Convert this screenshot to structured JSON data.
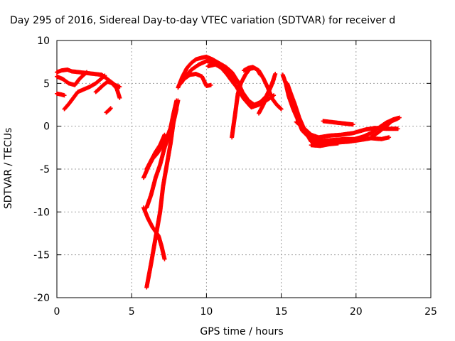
{
  "chart_data": {
    "type": "scatter",
    "title": "Day 295 of 2016, Sidereal Day-to-day VTEC variation (SDTVAR) for receiver d",
    "xlabel": "GPS time / hours",
    "ylabel": "SDTVAR / TECUs",
    "xlim": [
      0,
      25
    ],
    "ylim": [
      -20,
      10
    ],
    "x_ticks": [
      0,
      5,
      10,
      15,
      20,
      25
    ],
    "y_ticks": [
      -20,
      -15,
      -10,
      -5,
      0,
      5,
      10
    ],
    "grid": true,
    "legend": "none",
    "marker": "plus",
    "color": "#ff0000",
    "series": [
      {
        "points": [
          [
            0.0,
            6.3
          ],
          [
            0.3,
            6.5
          ],
          [
            0.7,
            6.6
          ],
          [
            1.0,
            6.4
          ],
          [
            1.5,
            6.3
          ],
          [
            2.0,
            6.2
          ],
          [
            2.5,
            6.1
          ],
          [
            3.0,
            6.0
          ],
          [
            3.3,
            5.6
          ],
          [
            3.6,
            5.2
          ],
          [
            3.9,
            4.8
          ],
          [
            4.2,
            4.6
          ]
        ]
      },
      {
        "points": [
          [
            0.0,
            5.8
          ],
          [
            0.4,
            5.5
          ],
          [
            0.8,
            5.0
          ],
          [
            1.2,
            4.8
          ],
          [
            1.5,
            5.5
          ],
          [
            1.8,
            6.0
          ],
          [
            2.0,
            6.3
          ]
        ]
      },
      {
        "points": [
          [
            0.0,
            3.8
          ],
          [
            0.3,
            3.7
          ],
          [
            0.5,
            3.6
          ]
        ]
      },
      {
        "points": [
          [
            0.5,
            2.0
          ],
          [
            0.8,
            2.6
          ],
          [
            1.1,
            3.3
          ],
          [
            1.4,
            4.0
          ],
          [
            1.8,
            4.3
          ],
          [
            2.2,
            4.6
          ],
          [
            2.6,
            5.0
          ],
          [
            3.0,
            5.6
          ],
          [
            3.2,
            5.9
          ]
        ]
      },
      {
        "points": [
          [
            2.6,
            4.0
          ],
          [
            2.8,
            4.3
          ],
          [
            3.1,
            4.8
          ],
          [
            3.4,
            5.2
          ],
          [
            3.7,
            5.0
          ],
          [
            4.0,
            4.4
          ],
          [
            4.2,
            3.3
          ]
        ]
      },
      {
        "points": [
          [
            3.3,
            1.6
          ],
          [
            3.5,
            1.9
          ],
          [
            3.6,
            2.1
          ]
        ]
      },
      {
        "points": [
          [
            5.8,
            -6.0
          ],
          [
            6.1,
            -4.8
          ],
          [
            6.4,
            -3.8
          ],
          [
            6.7,
            -3.2
          ],
          [
            7.0,
            -2.4
          ],
          [
            7.3,
            -1.6
          ],
          [
            7.6,
            -0.2
          ],
          [
            7.8,
            1.5
          ],
          [
            8.0,
            3.0
          ]
        ]
      },
      {
        "points": [
          [
            6.0,
            -5.0
          ],
          [
            6.3,
            -4.0
          ],
          [
            6.6,
            -3.0
          ],
          [
            6.9,
            -2.2
          ],
          [
            7.2,
            -1.0
          ]
        ]
      },
      {
        "points": [
          [
            5.8,
            -9.5
          ],
          [
            6.1,
            -10.8
          ],
          [
            6.4,
            -11.8
          ],
          [
            6.8,
            -12.8
          ],
          [
            7.0,
            -14.0
          ],
          [
            7.2,
            -15.5
          ]
        ]
      },
      {
        "points": [
          [
            6.0,
            -9.5
          ],
          [
            6.3,
            -8.0
          ],
          [
            6.6,
            -6.0
          ],
          [
            6.9,
            -4.5
          ],
          [
            7.2,
            -2.5
          ],
          [
            7.5,
            -1.0
          ],
          [
            7.8,
            0.5
          ],
          [
            8.0,
            2.0
          ]
        ]
      },
      {
        "points": [
          [
            6.0,
            -18.8
          ],
          [
            6.3,
            -16.0
          ],
          [
            6.6,
            -13.0
          ],
          [
            6.9,
            -10.0
          ],
          [
            7.1,
            -7.0
          ],
          [
            7.3,
            -5.0
          ],
          [
            7.6,
            -2.0
          ],
          [
            7.8,
            0.5
          ],
          [
            8.1,
            3.0
          ]
        ]
      },
      {
        "points": [
          [
            8.1,
            4.5
          ],
          [
            8.4,
            5.8
          ],
          [
            8.7,
            6.8
          ],
          [
            9.0,
            7.4
          ],
          [
            9.3,
            7.8
          ],
          [
            9.7,
            8.0
          ],
          [
            10.0,
            8.1
          ],
          [
            10.4,
            7.8
          ],
          [
            10.8,
            7.4
          ],
          [
            11.3,
            6.9
          ],
          [
            11.7,
            6.3
          ],
          [
            12.1,
            5.2
          ],
          [
            12.4,
            4.0
          ],
          [
            12.8,
            3.0
          ],
          [
            13.2,
            2.5
          ],
          [
            13.6,
            2.8
          ],
          [
            14.0,
            3.5
          ],
          [
            14.3,
            4.6
          ],
          [
            14.5,
            5.5
          ]
        ]
      },
      {
        "points": [
          [
            8.3,
            5.0
          ],
          [
            8.6,
            5.8
          ],
          [
            9.0,
            6.6
          ],
          [
            9.5,
            7.2
          ],
          [
            10.0,
            7.6
          ],
          [
            10.5,
            7.4
          ],
          [
            11.0,
            7.0
          ],
          [
            11.5,
            6.2
          ],
          [
            11.9,
            5.0
          ]
        ]
      },
      {
        "points": [
          [
            8.5,
            5.5
          ],
          [
            8.9,
            6.0
          ],
          [
            9.3,
            6.1
          ],
          [
            9.7,
            5.8
          ],
          [
            10.0,
            4.7
          ],
          [
            10.3,
            4.8
          ]
        ]
      },
      {
        "points": [
          [
            10.1,
            7.0
          ],
          [
            10.6,
            7.2
          ],
          [
            11.0,
            6.8
          ],
          [
            11.4,
            6.0
          ],
          [
            11.6,
            5.5
          ],
          [
            12.0,
            4.6
          ],
          [
            12.5,
            3.2
          ],
          [
            13.0,
            2.2
          ],
          [
            13.5,
            2.5
          ],
          [
            14.0,
            3.0
          ],
          [
            14.5,
            3.6
          ]
        ]
      },
      {
        "points": [
          [
            11.7,
            -1.3
          ],
          [
            11.8,
            0.0
          ],
          [
            11.9,
            1.2
          ],
          [
            12.0,
            2.5
          ],
          [
            12.1,
            3.8
          ],
          [
            12.3,
            5.0
          ],
          [
            12.6,
            6.0
          ],
          [
            12.9,
            6.7
          ],
          [
            13.2,
            6.8
          ],
          [
            13.5,
            6.5
          ],
          [
            13.8,
            5.6
          ],
          [
            14.1,
            4.5
          ],
          [
            14.4,
            3.2
          ],
          [
            14.7,
            2.5
          ],
          [
            15.0,
            2.0
          ]
        ]
      },
      {
        "points": [
          [
            12.5,
            6.5
          ],
          [
            12.8,
            6.8
          ],
          [
            13.1,
            6.9
          ],
          [
            13.4,
            6.6
          ],
          [
            13.6,
            6.0
          ]
        ]
      },
      {
        "points": [
          [
            13.5,
            1.5
          ],
          [
            13.8,
            2.5
          ],
          [
            14.1,
            3.8
          ],
          [
            14.4,
            5.0
          ],
          [
            14.6,
            6.1
          ]
        ]
      },
      {
        "points": [
          [
            15.1,
            6.0
          ],
          [
            15.3,
            5.0
          ],
          [
            15.5,
            3.5
          ],
          [
            15.8,
            2.0
          ],
          [
            16.1,
            0.8
          ],
          [
            16.4,
            -0.5
          ],
          [
            16.8,
            -1.2
          ],
          [
            17.2,
            -1.6
          ],
          [
            17.8,
            -1.7
          ],
          [
            18.5,
            -1.6
          ],
          [
            19.2,
            -1.5
          ],
          [
            19.9,
            -1.5
          ],
          [
            20.5,
            -1.2
          ],
          [
            21.0,
            -0.8
          ],
          [
            21.5,
            -0.2
          ],
          [
            22.0,
            0.4
          ],
          [
            22.5,
            0.8
          ],
          [
            22.9,
            1.0
          ]
        ]
      },
      {
        "points": [
          [
            15.4,
            5.0
          ],
          [
            15.6,
            4.0
          ],
          [
            15.9,
            2.6
          ],
          [
            16.2,
            1.0
          ],
          [
            16.6,
            -0.6
          ],
          [
            17.0,
            -1.8
          ],
          [
            17.5,
            -2.0
          ],
          [
            18.0,
            -1.8
          ],
          [
            18.7,
            -1.9
          ],
          [
            19.5,
            -1.8
          ],
          [
            20.3,
            -1.6
          ],
          [
            21.0,
            -1.4
          ],
          [
            21.7,
            -1.5
          ],
          [
            22.2,
            -1.3
          ]
        ]
      },
      {
        "points": [
          [
            16.0,
            0.5
          ],
          [
            16.5,
            -0.2
          ],
          [
            17.0,
            -1.0
          ],
          [
            17.5,
            -1.3
          ],
          [
            18.2,
            -1.1
          ],
          [
            19.0,
            -1.0
          ],
          [
            19.8,
            -0.8
          ],
          [
            20.6,
            -0.4
          ],
          [
            21.3,
            -0.2
          ],
          [
            22.0,
            -0.3
          ],
          [
            22.8,
            -0.3
          ]
        ]
      },
      {
        "points": [
          [
            17.8,
            0.6
          ],
          [
            18.3,
            0.5
          ],
          [
            18.8,
            0.4
          ],
          [
            19.3,
            0.3
          ],
          [
            19.8,
            0.2
          ]
        ]
      },
      {
        "points": [
          [
            17.0,
            -2.2
          ],
          [
            17.6,
            -2.3
          ],
          [
            18.2,
            -2.1
          ],
          [
            18.8,
            -2.0
          ]
        ]
      },
      {
        "points": [
          [
            21.0,
            -1.3
          ],
          [
            21.5,
            -0.7
          ],
          [
            22.0,
            0.0
          ],
          [
            22.4,
            0.6
          ],
          [
            22.8,
            0.9
          ]
        ]
      }
    ]
  }
}
